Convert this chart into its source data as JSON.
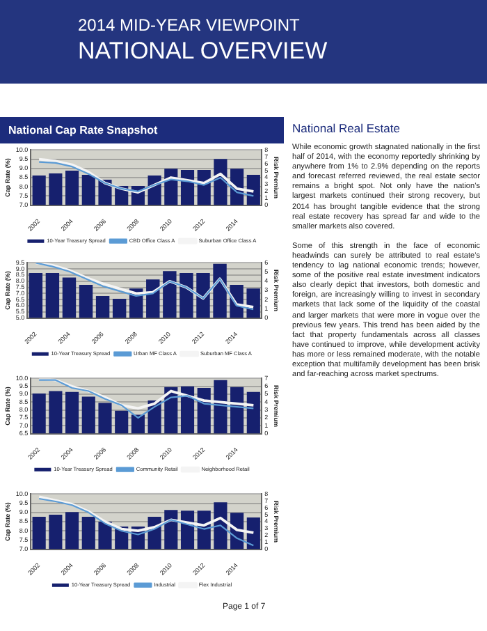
{
  "chart_data": [
    {
      "type": "other",
      "title": "2014 MID-YEAR VIEWPOINT",
      "subtitle": "NATIONAL OVERVIEW",
      "annotations": [
        "Page 1 of 7"
      ]
    },
    {
      "type": "bar",
      "title": "National Cap Rate Snapshot",
      "ylabel": "Cap Rate (%)",
      "y2label": "Risk Premium",
      "categories": [
        "2002",
        null,
        "2004",
        null,
        "2006",
        null,
        "2008",
        null,
        "2010",
        null,
        "2012",
        null,
        "2014",
        null
      ],
      "ylim": [
        7,
        10
      ],
      "yticks": [
        {
          "value": 7,
          "label": "7.0"
        },
        7.5,
        {
          "value": 8,
          "label": "8.0"
        },
        8.5,
        {
          "value": 9,
          "label": "9.0"
        },
        9.5,
        {
          "value": 10,
          "label": "10.0"
        }
      ],
      "y2lim": [
        0,
        8
      ],
      "y2ticks": [
        0,
        1,
        2,
        3,
        4,
        5,
        6,
        7,
        8
      ],
      "grid": "y",
      "legend": "bottom",
      "marker": "none",
      "series": [
        {
          "name": "10-Year Treasury Spread",
          "type": "bar",
          "axis": "y2",
          "color": "#16206e",
          "values": [
            4.3,
            4.6,
            5.0,
            4.4,
            3.7,
            2.8,
            2.8,
            4.3,
            5.3,
            5.1,
            5.1,
            6.7,
            5.3,
            4.4
          ]
        },
        {
          "name": "CBD Office Class A",
          "type": "line",
          "color": "#5b9bd5",
          "values": [
            9.35,
            9.3,
            9.1,
            8.7,
            8.2,
            7.9,
            7.75,
            8.1,
            8.4,
            8.3,
            8.1,
            8.5,
            7.7,
            7.5
          ]
        },
        {
          "name": "Suburban Office Class A",
          "type": "line",
          "color": "#f4f4f4",
          "values": [
            9.5,
            9.4,
            9.2,
            8.8,
            8.2,
            7.9,
            7.7,
            8.1,
            8.5,
            8.35,
            8.2,
            8.7,
            7.9,
            7.75
          ]
        }
      ]
    },
    {
      "type": "bar",
      "ylabel": "Cap Rate (%)",
      "y2label": "Risk Premium",
      "categories": [
        "2002",
        null,
        "2004",
        null,
        "2006",
        null,
        "2008",
        null,
        "2010",
        null,
        "2012",
        null,
        "2014",
        null
      ],
      "ylim": [
        5,
        9.5
      ],
      "yticks": [
        {
          "value": 5,
          "label": "5.0"
        },
        5.5,
        {
          "value": 6,
          "label": "6.0"
        },
        6.5,
        {
          "value": 7,
          "label": "7.0"
        },
        7.5,
        {
          "value": 8,
          "label": "8.0"
        },
        8.5,
        {
          "value": 9,
          "label": "9.0"
        },
        9.5
      ],
      "y2lim": [
        0,
        6
      ],
      "y2ticks": [
        0,
        1,
        2,
        3,
        4,
        5,
        6
      ],
      "grid": "y",
      "legend": "bottom",
      "marker": "none",
      "series": [
        {
          "name": "10-Year Treasury Spread",
          "type": "bar",
          "axis": "y2",
          "color": "#16206e",
          "values": [
            4.9,
            4.9,
            4.4,
            3.6,
            2.4,
            2.1,
            3.2,
            4.2,
            5.1,
            4.9,
            4.9,
            5.9,
            3.6,
            3.2
          ]
        },
        {
          "name": "Urban MF Class A",
          "type": "line",
          "color": "#5b9bd5",
          "values": [
            9.5,
            9.2,
            8.8,
            8.2,
            7.6,
            7.2,
            6.8,
            7.0,
            8.0,
            7.5,
            6.6,
            8.2,
            6.0,
            5.7
          ]
        },
        {
          "name": "Suburban MF Class A",
          "type": "line",
          "color": "#f4f4f4",
          "values": [
            9.5,
            9.3,
            8.9,
            8.3,
            7.8,
            7.4,
            7.0,
            7.1,
            8.0,
            7.5,
            6.6,
            8.2,
            6.1,
            5.9
          ]
        }
      ]
    },
    {
      "type": "bar",
      "ylabel": "Cap Rate (%)",
      "y2label": "Risk Premium",
      "categories": [
        "2002",
        null,
        "2004",
        null,
        "2006",
        null,
        "2008",
        null,
        "2010",
        null,
        "2012",
        null,
        "2014",
        null
      ],
      "ylim": [
        6.5,
        10
      ],
      "yticks": [
        6.5,
        {
          "value": 7,
          "label": "7.0"
        },
        7.5,
        {
          "value": 8,
          "label": "8.0"
        },
        8.5,
        {
          "value": 9,
          "label": "9.0"
        },
        9.5,
        {
          "value": 10,
          "label": "10.0"
        }
      ],
      "y2lim": [
        0,
        7
      ],
      "y2ticks": [
        0,
        1,
        2,
        3,
        4,
        5,
        6,
        7
      ],
      "grid": "y",
      "legend": "bottom",
      "marker": "none",
      "series": [
        {
          "name": "10-Year Treasury Spread",
          "type": "bar",
          "axis": "y2",
          "color": "#16206e",
          "values": [
            5.1,
            5.4,
            5.3,
            4.7,
            3.9,
            2.9,
            2.4,
            4.2,
            5.9,
            6.0,
            5.8,
            6.8,
            5.9,
            5.3
          ]
        },
        {
          "name": "Community Retail",
          "type": "line",
          "color": "#5b9bd5",
          "values": [
            9.9,
            9.9,
            9.4,
            9.2,
            8.7,
            8.3,
            7.5,
            8.2,
            8.8,
            8.9,
            8.4,
            8.3,
            8.2,
            8.1
          ]
        },
        {
          "name": "Neighborhood Retail",
          "type": "line",
          "color": "#f4f4f4",
          "values": [
            10.0,
            9.9,
            9.5,
            9.2,
            8.8,
            8.3,
            8.1,
            8.4,
            9.2,
            8.9,
            8.6,
            8.5,
            8.4,
            8.3
          ]
        }
      ]
    },
    {
      "type": "bar",
      "ylabel": "Cap Rate (%)",
      "y2label": "Risk Premium",
      "categories": [
        "2002",
        null,
        "2004",
        null,
        "2006",
        null,
        "2008",
        null,
        "2010",
        null,
        "2012",
        null,
        "2014",
        null
      ],
      "ylim": [
        7,
        10
      ],
      "yticks": [
        {
          "value": 7,
          "label": "7.0"
        },
        7.5,
        {
          "value": 8,
          "label": "8.0"
        },
        8.5,
        {
          "value": 9,
          "label": "9.0"
        },
        9.5,
        {
          "value": 10,
          "label": "10.0"
        }
      ],
      "y2lim": [
        0,
        8
      ],
      "y2ticks": [
        0,
        1,
        2,
        3,
        4,
        5,
        6,
        7,
        8
      ],
      "grid": "y",
      "legend": "bottom",
      "marker": "none",
      "series": [
        {
          "name": "10-Year Treasury Spread",
          "type": "bar",
          "axis": "y2",
          "color": "#16206e",
          "values": [
            4.7,
            5.0,
            5.4,
            4.7,
            4.0,
            3.3,
            3.3,
            4.7,
            5.7,
            5.6,
            5.6,
            6.8,
            5.3,
            4.6
          ]
        },
        {
          "name": "Industrial",
          "type": "line",
          "color": "#5b9bd5",
          "values": [
            9.75,
            9.6,
            9.4,
            9.0,
            8.4,
            8.0,
            7.8,
            8.1,
            8.6,
            8.35,
            8.1,
            8.3,
            7.6,
            7.2
          ]
        },
        {
          "name": "Flex Industrial",
          "type": "line",
          "color": "#f4f4f4",
          "values": [
            9.85,
            9.65,
            9.45,
            9.05,
            8.5,
            8.1,
            8.0,
            8.2,
            8.6,
            8.45,
            8.3,
            8.7,
            8.05,
            7.9
          ]
        }
      ]
    },
    {
      "type": "other",
      "title": "National Real Estate",
      "annotations": [
        "While economic growth stagnated nationally in the first half of 2014, with the economy reportedly shrinking by anywhere from 1% to 2.9% depending on the reports and forecast referred reviewed, the real estate sector remains a bright spot. Not only have the nation’s largest markets continued their strong recovery, but 2014 has brought tangible evidence that the strong real estate recovery has spread far and wide to the smaller markets also covered.",
        "Some of this strength in the face of economic headwinds can surely be attributed to real estate’s tendency to lag national economic trends; however, some of the positive real estate investment indicators also clearly depict that investors, both domestic and foreign, are increasingly willing to invest in secondary markets that lack some of the liquidity of the coastal and larger markets that were more in vogue over the previous few years. This trend has been aided by the fact that property fundamentals across all classes have continued to improve, while development activity has more or less remained moderate, with the notable exception that multifamily development has been brisk and far-reaching across market spectrums."
      ]
    }
  ]
}
